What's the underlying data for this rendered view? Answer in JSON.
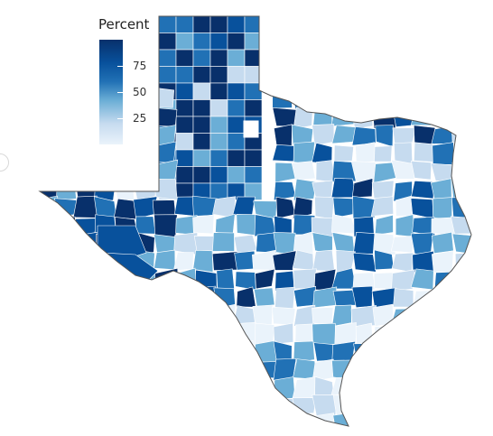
{
  "legend": {
    "title": "Percent",
    "ticks": [
      {
        "label": "75",
        "value": 75
      },
      {
        "label": "50",
        "value": 50
      },
      {
        "label": "25",
        "value": 25
      }
    ],
    "range": [
      0,
      100
    ]
  },
  "colors": {
    "dark": "#08306b",
    "mid_dark": "#08519c",
    "mid": "#2171b5",
    "light": "#6baed6",
    "lighter": "#c6dbef",
    "lightest": "#eaf3fb",
    "county_border": "#ffffff",
    "state_outline": "#555555"
  },
  "chart_data": {
    "type": "heatmap",
    "subject": "choropleth map of Texas counties",
    "value_range": [
      0,
      100
    ],
    "legend_placement": "top-left"
  }
}
